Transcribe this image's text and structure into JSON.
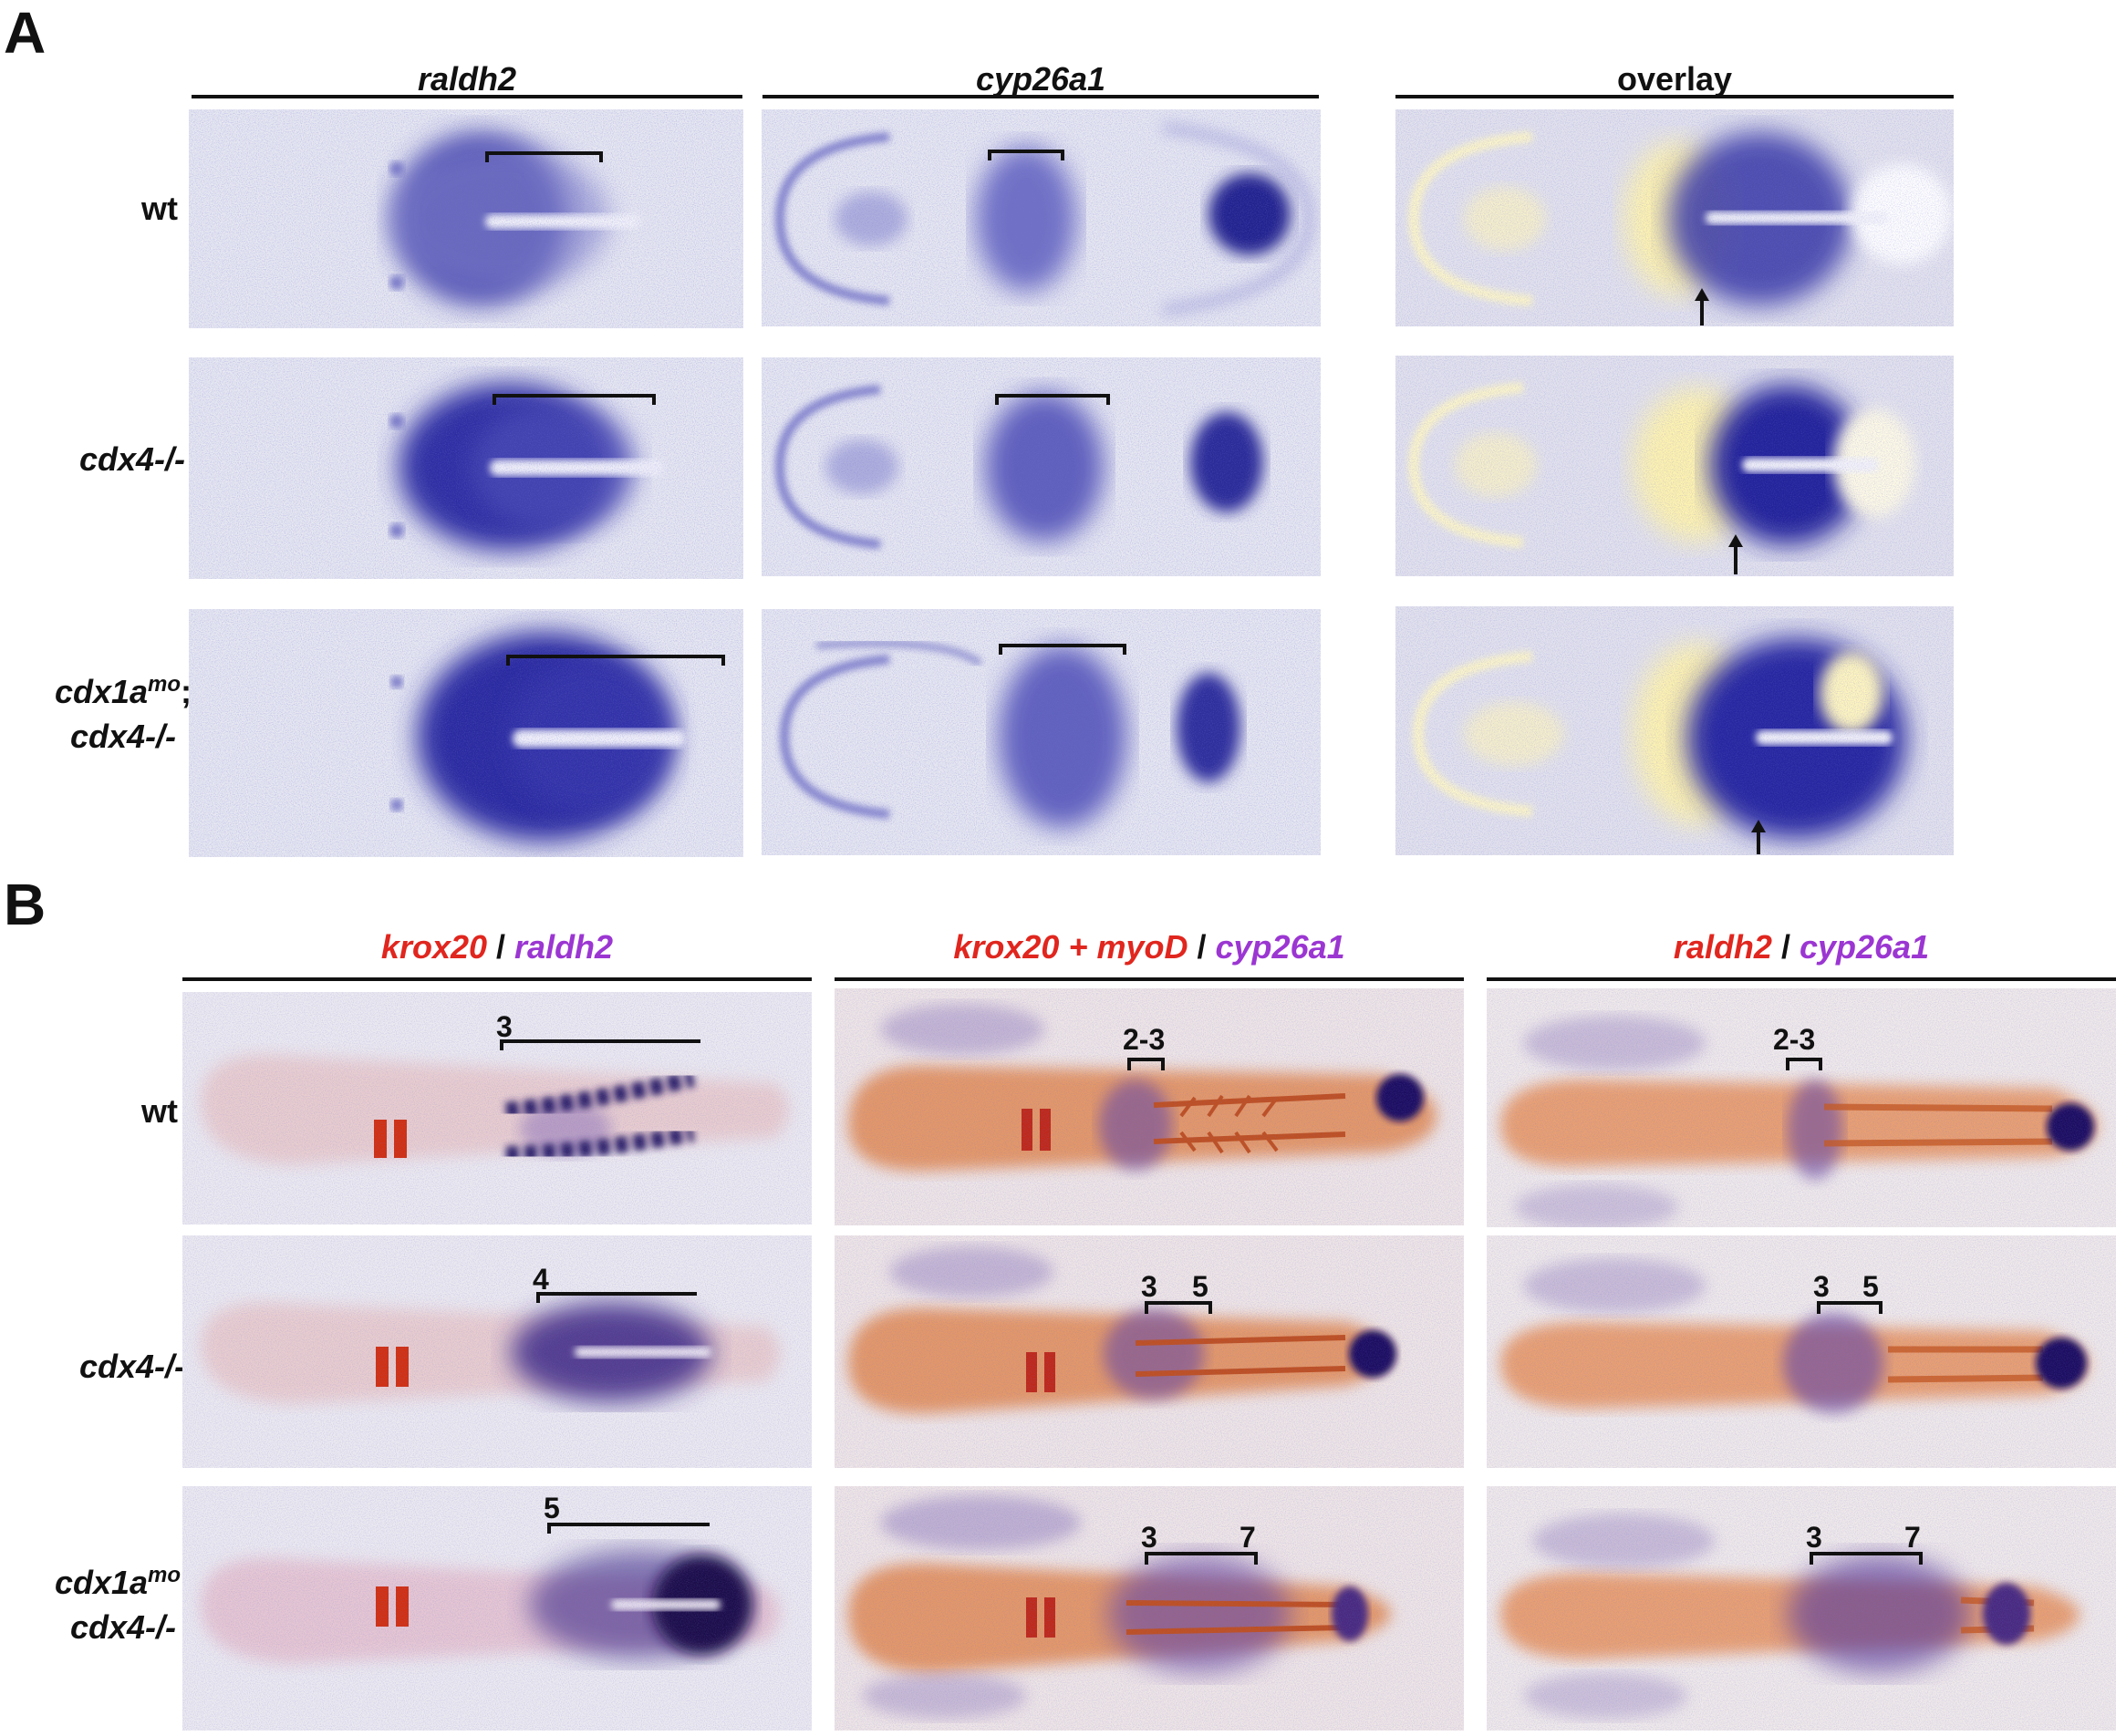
{
  "panelA": {
    "letter": "A",
    "columns": [
      "raldh2",
      "cyp26a1",
      "overlay"
    ],
    "rows": [
      {
        "label_parts": [
          "wt"
        ]
      },
      {
        "label_parts": [
          "cdx4-/-"
        ]
      },
      {
        "label_parts": [
          "cdx1a",
          "mo",
          ";",
          "cdx4-/-"
        ]
      }
    ]
  },
  "panelB": {
    "letter": "B",
    "columns": [
      {
        "part1": "krox20",
        "sep": " / ",
        "part2": "raldh2"
      },
      {
        "part1": "krox20 + myoD",
        "sep": " / ",
        "part2": "cyp26a1"
      },
      {
        "part1": "raldh2",
        "sep": " / ",
        "part2": "cyp26a1"
      }
    ],
    "rows": [
      {
        "label_parts": [
          "wt"
        ]
      },
      {
        "label_parts": [
          "cdx4-/-"
        ]
      },
      {
        "label_parts": [
          "cdx1a",
          "mo",
          ";",
          "cdx4-/-"
        ]
      }
    ],
    "bracket_numbers": {
      "r1c1": "3",
      "r1c2": "2-3",
      "r1c3": "2-3",
      "r2c1": "4",
      "r2c2a": "3",
      "r2c2b": "5",
      "r2c3a": "3",
      "r2c3b": "5",
      "r3c1": "5",
      "r3c2a": "3",
      "r3c2b": "7",
      "r3c3a": "3",
      "r3c3b": "7"
    }
  },
  "colors": {
    "tile_bg": "#e7e7f0",
    "stain_blue": "#2a2a9a",
    "overlay_yellow": "#fff7c4",
    "embryo_orange": "#e38c5a",
    "krox_red": "#d23010",
    "label_red": "#e0261e",
    "label_purple": "#9b36d2"
  }
}
